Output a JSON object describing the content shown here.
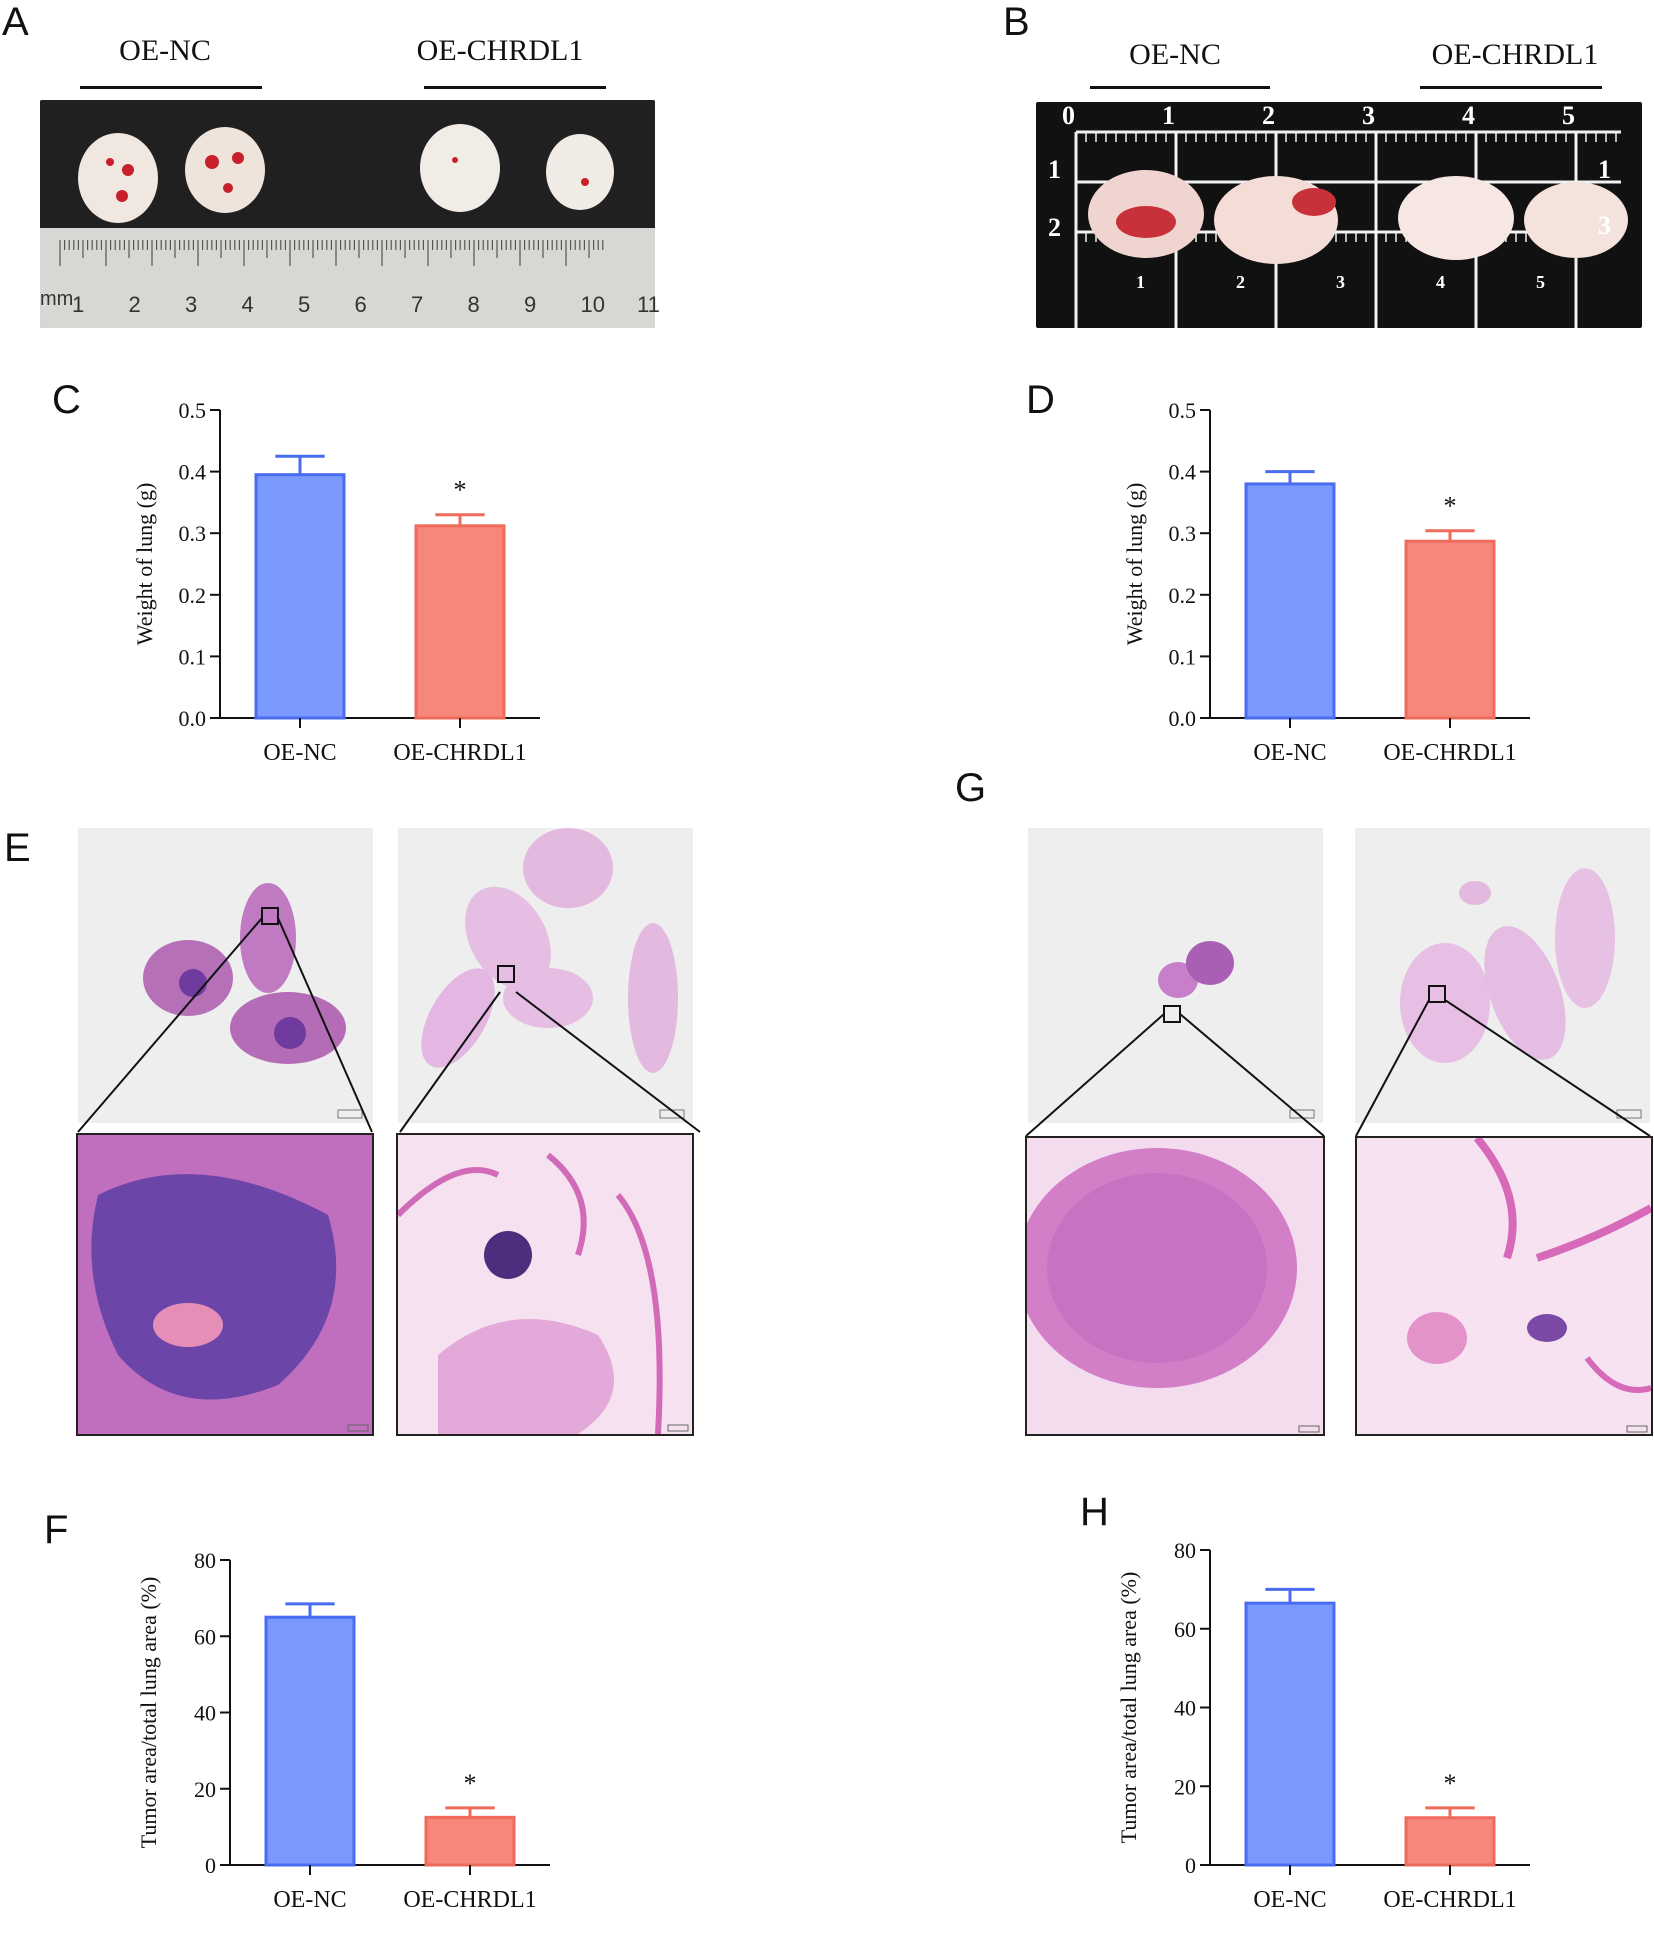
{
  "panels": {
    "A": {
      "letter": "A",
      "groups": [
        "OE-NC",
        "OE-CHRDL1"
      ],
      "ruler_unit": "mm",
      "ruler_ticks": [
        "1",
        "2",
        "3",
        "4",
        "5",
        "6",
        "7",
        "8",
        "9",
        "10",
        "11"
      ]
    },
    "B": {
      "letter": "B",
      "groups": [
        "OE-NC",
        "OE-CHRDL1"
      ],
      "grid_top": [
        "0",
        "1",
        "2",
        "3",
        "4",
        "5"
      ],
      "grid_side": [
        "1",
        "2"
      ],
      "grid_right": [
        "1",
        "3"
      ],
      "grid_inner": [
        "1",
        "2",
        "3",
        "4",
        "5"
      ]
    },
    "E": {
      "letter": "E"
    },
    "G": {
      "letter": "G"
    }
  },
  "colors": {
    "nc": "#7a99ff",
    "nc_stroke": "#4a6cf0",
    "chrdl1": "#f6877a",
    "chrdl1_stroke": "#ee6a5a",
    "axis": "#111111"
  },
  "chart_data": [
    {
      "id": "C",
      "letter": "C",
      "type": "bar",
      "categories": [
        "OE-NC",
        "OE-CHRDL1"
      ],
      "values": [
        0.395,
        0.312
      ],
      "errors": [
        0.03,
        0.018
      ],
      "significance": [
        "",
        "*"
      ],
      "ylabel": "Weight of lung (g)",
      "ylim": [
        0,
        0.5
      ],
      "yticks": [
        "0.0",
        "0.1",
        "0.2",
        "0.3",
        "0.4",
        "0.5"
      ],
      "grid": false,
      "legend": "none"
    },
    {
      "id": "D",
      "letter": "D",
      "type": "bar",
      "categories": [
        "OE-NC",
        "OE-CHRDL1"
      ],
      "values": [
        0.38,
        0.287
      ],
      "errors": [
        0.02,
        0.017
      ],
      "significance": [
        "",
        "*"
      ],
      "ylabel": "Weight of lung (g)",
      "ylim": [
        0,
        0.5
      ],
      "yticks": [
        "0.0",
        "0.1",
        "0.2",
        "0.3",
        "0.4",
        "0.5"
      ],
      "grid": false,
      "legend": "none"
    },
    {
      "id": "F",
      "letter": "F",
      "type": "bar",
      "categories": [
        "OE-NC",
        "OE-CHRDL1"
      ],
      "values": [
        65,
        12.5
      ],
      "errors": [
        3.5,
        2.5
      ],
      "significance": [
        "",
        "*"
      ],
      "ylabel": "Tumor area/total lung area (%)",
      "ylim": [
        0,
        80
      ],
      "yticks": [
        "0",
        "20",
        "40",
        "60",
        "80"
      ],
      "grid": false,
      "legend": "none"
    },
    {
      "id": "H",
      "letter": "H",
      "type": "bar",
      "categories": [
        "OE-NC",
        "OE-CHRDL1"
      ],
      "values": [
        66.5,
        12
      ],
      "errors": [
        3.5,
        2.5
      ],
      "significance": [
        "",
        "*"
      ],
      "ylabel": "Tumor area/total lung area (%)",
      "ylim": [
        0,
        80
      ],
      "yticks": [
        "0",
        "20",
        "40",
        "60",
        "80"
      ],
      "grid": false,
      "legend": "none"
    }
  ]
}
